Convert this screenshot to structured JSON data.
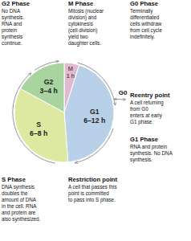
{
  "chart_data": {
    "type": "pie",
    "categories": [
      "M\n1 h",
      "G1\n6–12 h",
      "S\n6–8 h",
      "G2\n3–4 h"
    ],
    "values": [
      1,
      9,
      7,
      3.5
    ],
    "colors": [
      "#e0b8d0",
      "#b8d0e8",
      "#dde8a0",
      "#a8d4a0"
    ],
    "annotations": [
      {
        "text": "G0"
      },
      {
        "title": "G2 Phase",
        "text": "No DNA\nsynthesis.\nRNA and\nprotein\nsynthesis\ncontinue."
      },
      {
        "title": "M Phase",
        "text": "Mitosis (nuclear\ndivision) and\ncytokinesis\n(cell division)\nyield two\ndaughter cells."
      },
      {
        "title": "G0 Phase",
        "text": "Terminally\ndifferentiated\ncells withdraw\nfrom cell cycle\nindefinitely."
      },
      {
        "title": "Reentry point",
        "text": "A cell returning\nfrom G0\nenters at early\nG1 phase."
      },
      {
        "title": "G1 Phase",
        "text": "RNA and protein\nsynthesis. No DNA\nsynthesis."
      },
      {
        "title": "Restriction point",
        "text": "A cell that passes this\npoint is committed\nto pass into S phase."
      },
      {
        "title": "S Phase",
        "text": "DNA synthesis\ndoubles the\namount of DNA\nin the cell. RNA\nand protein are\nalso synthesized."
      }
    ]
  }
}
